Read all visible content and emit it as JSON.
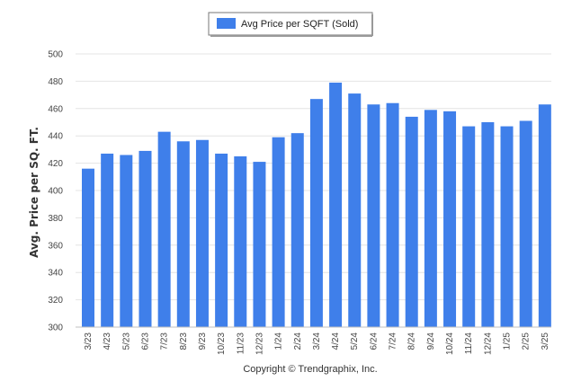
{
  "chart_data": {
    "type": "bar",
    "legend": [
      "Avg Price per SQFT (Sold)"
    ],
    "legend_position": "top-center",
    "ylabel": "Avg. Price per SQ. FT.",
    "xlabel": "",
    "ylim": [
      300,
      500
    ],
    "yticks": [
      300,
      320,
      340,
      360,
      380,
      400,
      420,
      440,
      460,
      480,
      500
    ],
    "grid": true,
    "categories": [
      "3/23",
      "4/23",
      "5/23",
      "6/23",
      "7/23",
      "8/23",
      "9/23",
      "10/23",
      "11/23",
      "12/23",
      "1/24",
      "2/24",
      "3/24",
      "4/24",
      "5/24",
      "6/24",
      "7/24",
      "8/24",
      "9/24",
      "10/24",
      "11/24",
      "12/24",
      "1/25",
      "2/25",
      "3/25"
    ],
    "series": [
      {
        "name": "Avg Price per SQFT (Sold)",
        "values": [
          416,
          427,
          426,
          429,
          443,
          436,
          437,
          427,
          425,
          421,
          439,
          442,
          467,
          479,
          471,
          463,
          464,
          454,
          459,
          458,
          447,
          450,
          447,
          451,
          463
        ]
      }
    ],
    "colors": {
      "bar": "#3f7fea",
      "grid": "#e4e4e4",
      "axis": "#c0c0c0"
    }
  },
  "footer": {
    "copyright": "Copyright © Trendgraphix, Inc."
  }
}
